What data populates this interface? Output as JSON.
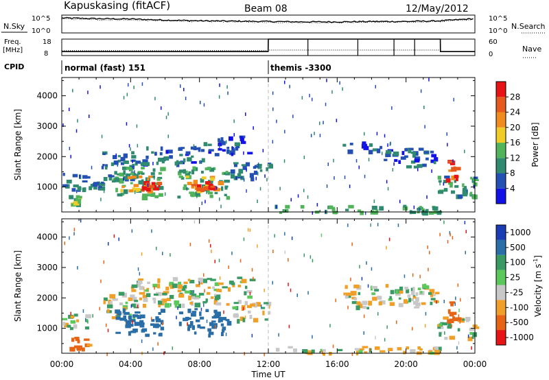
{
  "header": {
    "station": "Kapuskasing (fitACF)",
    "beam": "Beam 08",
    "date": "12/May/2012"
  },
  "noise_panel": {
    "left_label": "N.Sky",
    "right_label": "N.Search",
    "left_ticks": [
      "10^5",
      "10^0"
    ],
    "right_ticks": [
      "10^5",
      "10^0"
    ]
  },
  "freq_panel": {
    "left_label_1": "Freq.",
    "left_label_2": "[MHz]",
    "right_label": "Nave",
    "left_ticks": [
      "18",
      "8"
    ],
    "right_ticks": [
      "60",
      "0"
    ]
  },
  "cpid": {
    "label": "CPID",
    "modes": [
      {
        "name": "normal (fast) 151",
        "start_hour": 0,
        "end_hour": 12
      },
      {
        "name": "themis -3300",
        "start_hour": 12,
        "end_hour": 24
      }
    ]
  },
  "time_axis": {
    "title": "Time UT",
    "ticks": [
      "00:00",
      "04:00",
      "08:00",
      "12:00",
      "16:00",
      "20:00",
      "00:00"
    ]
  },
  "range_axis": {
    "title": "Slant Range [km]",
    "ticks": [
      "1000",
      "2000",
      "3000",
      "4000"
    ]
  },
  "power_scale": {
    "title": "Power [dB]",
    "labels": [
      "4",
      "8",
      "12",
      "16",
      "20",
      "24",
      "28"
    ],
    "colors": [
      "#1212e6",
      "#2450b4",
      "#2f8a70",
      "#52b45a",
      "#f0cc28",
      "#f08c1e",
      "#e65a1e",
      "#e61414"
    ]
  },
  "velocity_scale": {
    "title": "Velocity [m s",
    "exponent": "-1",
    "title_end": "]",
    "labels": [
      "1000",
      "500",
      "100",
      "25",
      "-25",
      "-100",
      "-500",
      "-1000"
    ],
    "colors": [
      "#1a3cb4",
      "#2a6ea8",
      "#3a9a64",
      "#5ac85a",
      "#c8c8c8",
      "#f0a028",
      "#e66414",
      "#e61414"
    ]
  },
  "chart_data": [
    {
      "type": "line",
      "title": "Kapuskasing (fitACF) Beam 08 12/May/2012",
      "xlabel": "Time UT",
      "ylabel": "N.Sky / N.Search",
      "xlim": [
        0,
        24
      ],
      "series": [
        {
          "name": "N.Sky",
          "x": [
            0,
            2,
            4,
            6,
            8,
            10,
            12,
            14,
            16,
            18,
            20,
            22,
            24
          ],
          "values": [
            4.2,
            4.0,
            3.9,
            3.6,
            3.4,
            3.3,
            3.2,
            3.1,
            3.1,
            3.2,
            3.2,
            3.4,
            4.0
          ]
        },
        {
          "name": "N.Search",
          "x": [
            0,
            2,
            4,
            6,
            8,
            10,
            12,
            14,
            16,
            18,
            20,
            22,
            24
          ],
          "values": [
            3.9,
            3.7,
            3.6,
            3.4,
            3.2,
            3.1,
            3.0,
            2.9,
            2.9,
            3.0,
            3.0,
            3.2,
            3.8
          ]
        }
      ]
    },
    {
      "type": "line",
      "title": "",
      "xlabel": "Time UT",
      "ylabel": "Freq. [MHz]",
      "xlim": [
        0,
        24
      ],
      "ylim": [
        8,
        18
      ],
      "series": [
        {
          "name": "Freq.",
          "x": [
            0,
            11.99,
            12.0,
            21.99,
            22.0,
            24
          ],
          "values": [
            10.4,
            10.4,
            18,
            18,
            10.4,
            10.4
          ]
        },
        {
          "name": "Nave",
          "x": [
            0,
            11.99,
            12.0,
            21.99,
            22.0,
            24
          ],
          "values": [
            18,
            18,
            20,
            20,
            14,
            14
          ]
        }
      ]
    },
    {
      "type": "heatmap",
      "title": "",
      "xlabel": "Time UT",
      "ylabel": "Slant Range [km]",
      "xlim": [
        0,
        24
      ],
      "ylim": [
        180,
        4600
      ],
      "value_label": "Power [dB]",
      "value_range": [
        0,
        30
      ],
      "regions": [
        {
          "t0": 0.0,
          "t1": 1.5,
          "r0": 900,
          "r1": 1500,
          "value": 8
        },
        {
          "t0": 0.4,
          "t1": 1.0,
          "r0": 350,
          "r1": 750,
          "value": 14
        },
        {
          "t0": 1.5,
          "t1": 2.3,
          "r0": 1000,
          "r1": 1200,
          "value": 8
        },
        {
          "t0": 2.3,
          "t1": 4.2,
          "r0": 1250,
          "r1": 2200,
          "value": 8
        },
        {
          "t0": 2.9,
          "t1": 5.8,
          "r0": 700,
          "r1": 1700,
          "value": 12
        },
        {
          "t0": 3.3,
          "t1": 5.1,
          "r0": 900,
          "r1": 1400,
          "value": 20
        },
        {
          "t0": 4.0,
          "t1": 8.2,
          "r0": 1800,
          "r1": 2400,
          "value": 6
        },
        {
          "t0": 4.3,
          "t1": 5.6,
          "r0": 950,
          "r1": 1250,
          "value": 28
        },
        {
          "t0": 6.7,
          "t1": 9.6,
          "r0": 700,
          "r1": 1700,
          "value": 12
        },
        {
          "t0": 7.1,
          "t1": 9.2,
          "r0": 900,
          "r1": 1400,
          "value": 20
        },
        {
          "t0": 7.5,
          "t1": 8.8,
          "r0": 950,
          "r1": 1250,
          "value": 28
        },
        {
          "t0": 8.2,
          "t1": 10.8,
          "r0": 2100,
          "r1": 2700,
          "value": 6
        },
        {
          "t0": 9.8,
          "t1": 12.0,
          "r0": 1300,
          "r1": 1900,
          "value": 8
        },
        {
          "t0": 12.0,
          "t1": 22.0,
          "r0": 200,
          "r1": 420,
          "value": 12
        },
        {
          "t0": 16.3,
          "t1": 18.5,
          "r0": 2200,
          "r1": 2500,
          "value": 6
        },
        {
          "t0": 18.5,
          "t1": 21.7,
          "r0": 1700,
          "r1": 2300,
          "value": 6
        },
        {
          "t0": 21.8,
          "t1": 24.0,
          "r0": 700,
          "r1": 1400,
          "value": 10
        },
        {
          "t0": 22.3,
          "t1": 22.9,
          "r0": 1200,
          "r1": 1900,
          "value": 26
        }
      ]
    },
    {
      "type": "heatmap",
      "title": "",
      "xlabel": "Time UT",
      "ylabel": "Slant Range [km]",
      "xlim": [
        0,
        24
      ],
      "ylim": [
        180,
        4600
      ],
      "value_label": "Velocity [m s-1]",
      "value_range": [
        -1000,
        1000
      ],
      "regions": [
        {
          "t0": 0.0,
          "t1": 1.5,
          "r0": 1000,
          "r1": 1500,
          "value": 0
        },
        {
          "t0": 0.4,
          "t1": 1.5,
          "r0": 350,
          "r1": 800,
          "value": -150
        },
        {
          "t0": 2.3,
          "t1": 4.2,
          "r0": 1250,
          "r1": 2200,
          "value": 0
        },
        {
          "t0": 3.0,
          "t1": 5.8,
          "r0": 800,
          "r1": 1700,
          "value": 300
        },
        {
          "t0": 4.0,
          "t1": 11.0,
          "r0": 1800,
          "r1": 2700,
          "value": 0
        },
        {
          "t0": 6.8,
          "t1": 9.6,
          "r0": 800,
          "r1": 1700,
          "value": 300
        },
        {
          "t0": 9.8,
          "t1": 12.0,
          "r0": 1300,
          "r1": 1900,
          "value": 0
        },
        {
          "t0": 12.0,
          "t1": 22.0,
          "r0": 200,
          "r1": 420,
          "value": -20
        },
        {
          "t0": 16.3,
          "t1": 21.7,
          "r0": 1700,
          "r1": 2500,
          "value": 0
        },
        {
          "t0": 21.8,
          "t1": 24.0,
          "r0": 700,
          "r1": 1400,
          "value": 0
        },
        {
          "t0": 22.3,
          "t1": 22.9,
          "r0": 1200,
          "r1": 1900,
          "value": -200
        }
      ]
    }
  ]
}
